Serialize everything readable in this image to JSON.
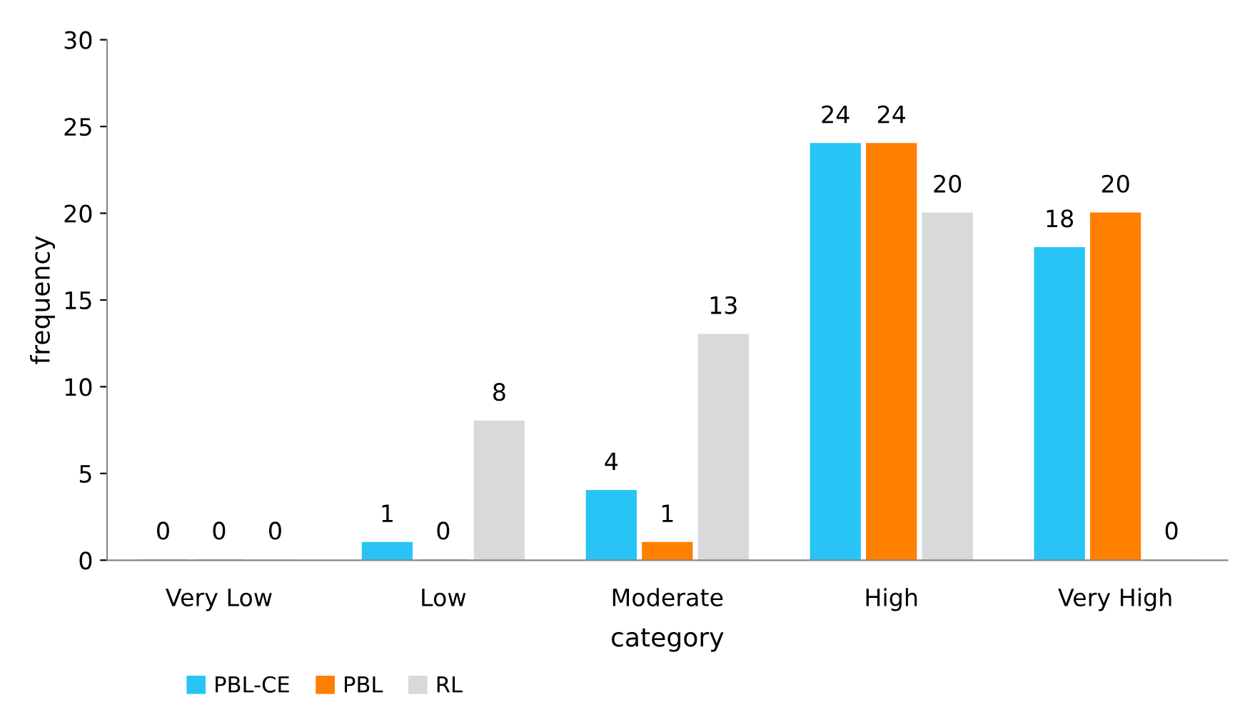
{
  "chart_data": {
    "type": "bar",
    "xlabel": "category",
    "ylabel": "frequency",
    "categories": [
      "Very Low",
      "Low",
      "Moderate",
      "High",
      "Very High"
    ],
    "series": [
      {
        "name": "PBL-CE",
        "color": "#29c4f6",
        "values": [
          0,
          1,
          4,
          24,
          18
        ]
      },
      {
        "name": "PBL",
        "color": "#ff7f00",
        "values": [
          0,
          0,
          1,
          24,
          20
        ]
      },
      {
        "name": "RL",
        "color": "#d9d9d9",
        "values": [
          0,
          8,
          13,
          20,
          0
        ]
      }
    ],
    "ylim": [
      0,
      30
    ],
    "yticks": [
      0,
      5,
      10,
      15,
      20,
      25,
      30
    ],
    "grid": false,
    "legend": "bottom left",
    "data_labels": true
  }
}
